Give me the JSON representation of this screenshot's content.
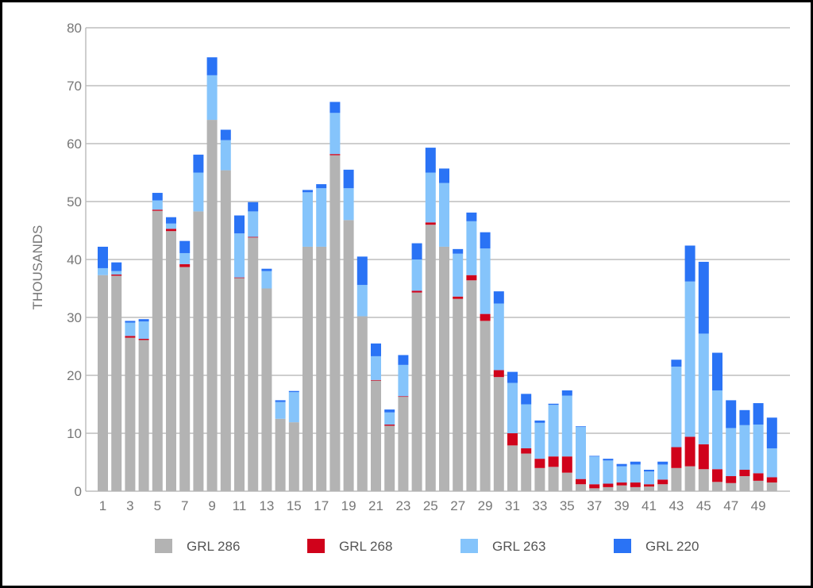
{
  "chart_data": {
    "type": "bar",
    "stacked": true,
    "title": "",
    "xlabel": "",
    "ylabel": "THOUSANDS",
    "ylim": [
      0,
      80
    ],
    "yticks": [
      0,
      10,
      20,
      30,
      40,
      50,
      60,
      70,
      80
    ],
    "grid": true,
    "legend_position": "bottom",
    "categories": [
      1,
      2,
      3,
      4,
      5,
      6,
      7,
      8,
      9,
      10,
      11,
      12,
      13,
      14,
      15,
      16,
      17,
      18,
      19,
      20,
      21,
      22,
      23,
      24,
      25,
      26,
      27,
      28,
      29,
      30,
      31,
      32,
      33,
      34,
      35,
      36,
      37,
      38,
      39,
      40,
      41,
      42,
      43,
      44,
      45,
      46,
      47,
      48,
      49,
      50
    ],
    "xtick_labels": [
      "1",
      "3",
      "5",
      "7",
      "9",
      "11",
      "13",
      "15",
      "17",
      "19",
      "21",
      "23",
      "25",
      "27",
      "29",
      "31",
      "33",
      "35",
      "37",
      "39",
      "41",
      "43",
      "45",
      "47",
      "49"
    ],
    "series": [
      {
        "name": "GRL 286",
        "color": "#b3b3b3",
        "values": [
          37.3,
          37.2,
          26.5,
          26.1,
          48.4,
          44.9,
          38.7,
          48.3,
          64.1,
          55.4,
          36.8,
          43.8,
          35.0,
          12.5,
          11.9,
          42.2,
          42.2,
          58.0,
          46.8,
          30.2,
          19.1,
          11.3,
          16.3,
          34.3,
          46.0,
          42.2,
          33.2,
          36.4,
          29.4,
          19.7,
          7.9,
          6.5,
          4.0,
          4.2,
          3.2,
          1.2,
          0.5,
          0.7,
          1.0,
          0.7,
          0.8,
          1.2,
          4.0,
          4.3,
          3.8,
          1.6,
          1.4,
          2.6,
          1.8,
          1.5
        ]
      },
      {
        "name": "GRL 268",
        "color": "#d0021b",
        "values": [
          0,
          0.2,
          0.3,
          0.2,
          0.2,
          0.4,
          0.5,
          0,
          0,
          0,
          0.1,
          0.1,
          0,
          0,
          0,
          0,
          0,
          0.2,
          0,
          0,
          0.1,
          0.2,
          0.1,
          0.3,
          0.4,
          0,
          0.4,
          0.9,
          1.2,
          1.2,
          2.1,
          0.9,
          1.6,
          1.8,
          2.8,
          0.9,
          0.7,
          0.6,
          0.5,
          0.8,
          0.4,
          0.8,
          3.6,
          5.1,
          4.3,
          2.2,
          1.2,
          1.1,
          1.3,
          0.9
        ]
      },
      {
        "name": "GRL 263",
        "color": "#85c4fb",
        "values": [
          1.2,
          0.6,
          2.3,
          3.0,
          1.6,
          0.9,
          1.9,
          6.7,
          7.7,
          5.2,
          7.6,
          4.4,
          3.0,
          2.9,
          5.2,
          9.4,
          10.1,
          7.1,
          5.5,
          5.4,
          4.1,
          2.1,
          5.4,
          5.4,
          8.6,
          11.0,
          7.4,
          9.3,
          11.3,
          11.5,
          8.7,
          7.6,
          6.2,
          8.9,
          10.5,
          9.0,
          4.8,
          4.0,
          2.8,
          3.1,
          2.2,
          2.6,
          13.9,
          26.8,
          19.1,
          13.6,
          8.3,
          7.7,
          8.4,
          5.0
        ]
      },
      {
        "name": "GRL 220",
        "color": "#2a73f5",
        "values": [
          3.7,
          1.5,
          0.3,
          0.4,
          1.3,
          1.1,
          2.1,
          3.1,
          3.1,
          1.8,
          3.1,
          1.6,
          0.4,
          0.3,
          0.2,
          0.4,
          0.7,
          1.9,
          3.2,
          4.9,
          2.2,
          0.5,
          1.7,
          2.8,
          4.3,
          2.5,
          0.8,
          1.5,
          2.8,
          2.1,
          1.9,
          1.8,
          0.4,
          0.2,
          0.9,
          0.1,
          0.1,
          0.3,
          0.4,
          0.5,
          0.3,
          0.5,
          1.2,
          6.2,
          12.4,
          6.5,
          4.8,
          2.6,
          3.7,
          5.3
        ]
      }
    ]
  }
}
